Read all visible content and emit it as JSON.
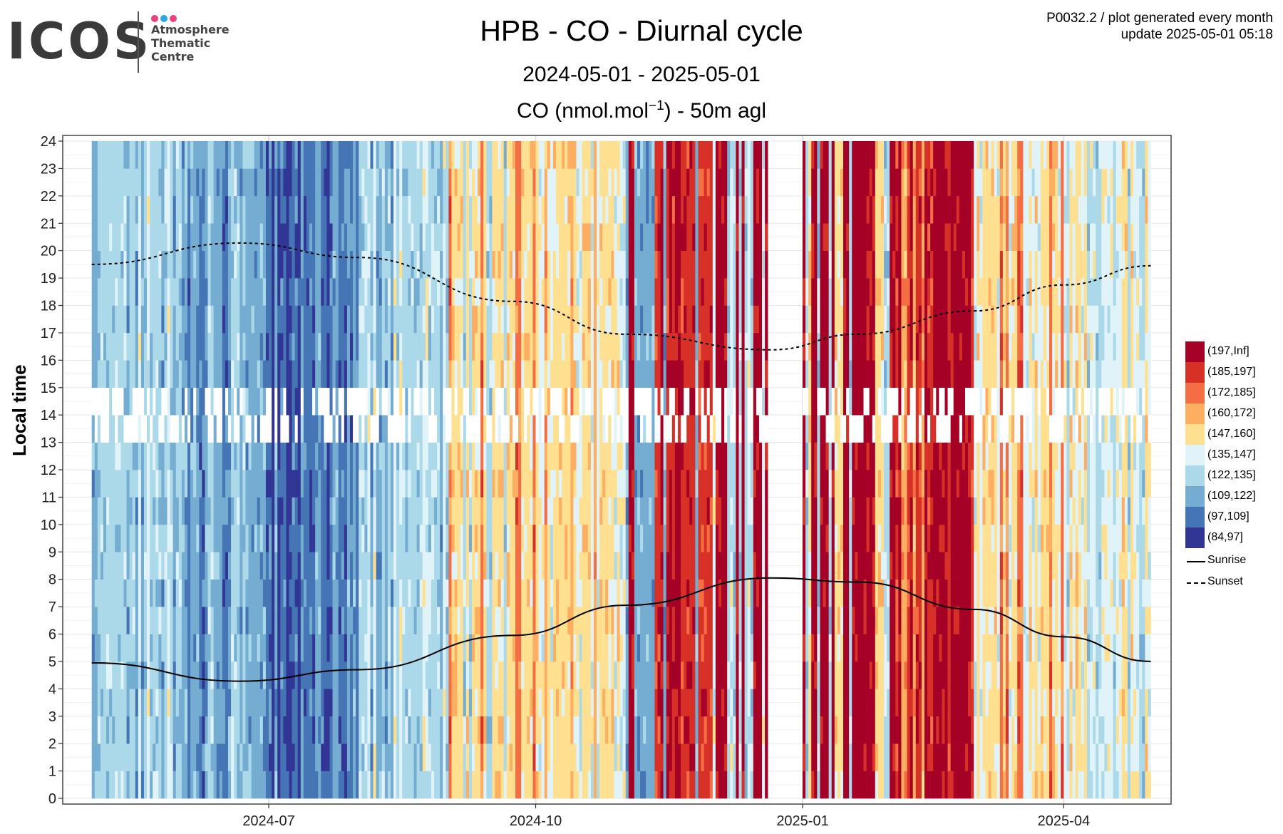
{
  "logo": {
    "text": "ICOS",
    "subtitle_lines": [
      "Atmosphere",
      "Thematic",
      "Centre"
    ],
    "dot_colors": [
      "#e8437b",
      "#2ca7e0",
      "#e8437b"
    ]
  },
  "header": {
    "title": "HPB - CO - Diurnal cycle",
    "date_range": "2024-05-01 - 2025-05-01",
    "variable_prefix": "CO (nmol.mol",
    "variable_exponent": "−1",
    "variable_suffix": ") - 50m agl",
    "meta_line1": "P0032.2 / plot generated every month",
    "meta_line2": "update  2025-05-01 05:18"
  },
  "chart_data": {
    "type": "heatmap",
    "ylabel": "Local time",
    "xlabel": "",
    "x_ticks": [
      "2024-07",
      "2024-10",
      "2025-01",
      "2025-04"
    ],
    "x_tick_dates": [
      "2024-07-01",
      "2024-10-01",
      "2025-01-01",
      "2025-04-01"
    ],
    "x_range": [
      "2024-04-21",
      "2025-05-08"
    ],
    "y_ticks": [
      0,
      1,
      2,
      3,
      4,
      5,
      6,
      7,
      8,
      9,
      10,
      11,
      12,
      13,
      14,
      15,
      16,
      17,
      18,
      19,
      20,
      21,
      22,
      23,
      24
    ],
    "y_range": [
      0,
      24
    ],
    "grid": true,
    "legend_placement": "right",
    "color_classes": [
      {
        "label": "(197,Inf]",
        "color": "#a50026"
      },
      {
        "label": "(185,197]",
        "color": "#d73027"
      },
      {
        "label": "(172,185]",
        "color": "#f46d43"
      },
      {
        "label": "(160,172]",
        "color": "#fdae61"
      },
      {
        "label": "(147,160]",
        "color": "#fee090"
      },
      {
        "label": "(135,147]",
        "color": "#e0f3f8"
      },
      {
        "label": "(122,135]",
        "color": "#abd9e9"
      },
      {
        "label": "(109,122]",
        "color": "#74add1"
      },
      {
        "label": "(97,109]",
        "color": "#4575b4"
      },
      {
        "label": "(84,97]",
        "color": "#313695"
      }
    ],
    "approx_daily_class_by_month": [
      {
        "month": "2024-05",
        "typical_classes": [
          "(122,135]",
          "(109,122]",
          "(135,147]"
        ]
      },
      {
        "month": "2024-06",
        "typical_classes": [
          "(109,122]",
          "(97,109]",
          "(122,135]"
        ]
      },
      {
        "month": "2024-07",
        "typical_classes": [
          "(97,109]",
          "(109,122]",
          "(84,97]"
        ]
      },
      {
        "month": "2024-08",
        "typical_classes": [
          "(122,135]",
          "(135,147]",
          "(109,122]"
        ]
      },
      {
        "month": "2024-09",
        "typical_classes": [
          "(147,160]",
          "(172,185]",
          "(122,135]"
        ]
      },
      {
        "month": "2024-10",
        "typical_classes": [
          "(147,160]",
          "(135,147]",
          "(160,172]"
        ]
      },
      {
        "month": "2024-11",
        "typical_classes": [
          "(185,197]",
          "(109,122]",
          "(197,Inf]"
        ]
      },
      {
        "month": "2024-12",
        "typical_classes": [
          "(197,Inf]",
          "(122,135]",
          "(135,147]"
        ]
      },
      {
        "month": "2025-01",
        "typical_classes": [
          "(197,Inf]",
          "(147,160]",
          "(122,135]"
        ]
      },
      {
        "month": "2025-02",
        "typical_classes": [
          "(197,Inf]",
          "(185,197]",
          "(160,172]"
        ]
      },
      {
        "month": "2025-03",
        "typical_classes": [
          "(147,160]",
          "(135,147]",
          "(172,185]"
        ]
      },
      {
        "month": "2025-04",
        "typical_classes": [
          "(135,147]",
          "(122,135]",
          "(147,160]"
        ]
      }
    ],
    "gap_period": [
      "2024-12-20",
      "2025-01-01"
    ],
    "sunrise": {
      "name": "Sunrise",
      "style": "solid",
      "dates": [
        "2024-05-01",
        "2024-06-21",
        "2024-08-01",
        "2024-09-23",
        "2024-11-01",
        "2024-12-21",
        "2025-01-20",
        "2025-03-01",
        "2025-04-01",
        "2025-05-01"
      ],
      "values": [
        4.95,
        4.28,
        4.7,
        5.95,
        7.05,
        8.05,
        7.9,
        6.9,
        5.9,
        5.0
      ]
    },
    "sunset": {
      "name": "Sunset",
      "style": "dashed",
      "dates": [
        "2024-05-01",
        "2024-06-21",
        "2024-08-01",
        "2024-09-23",
        "2024-11-01",
        "2024-12-21",
        "2025-01-20",
        "2025-03-01",
        "2025-04-01",
        "2025-05-01"
      ],
      "values": [
        19.5,
        20.28,
        19.75,
        18.15,
        16.95,
        16.38,
        16.95,
        17.8,
        18.75,
        19.45
      ]
    }
  }
}
